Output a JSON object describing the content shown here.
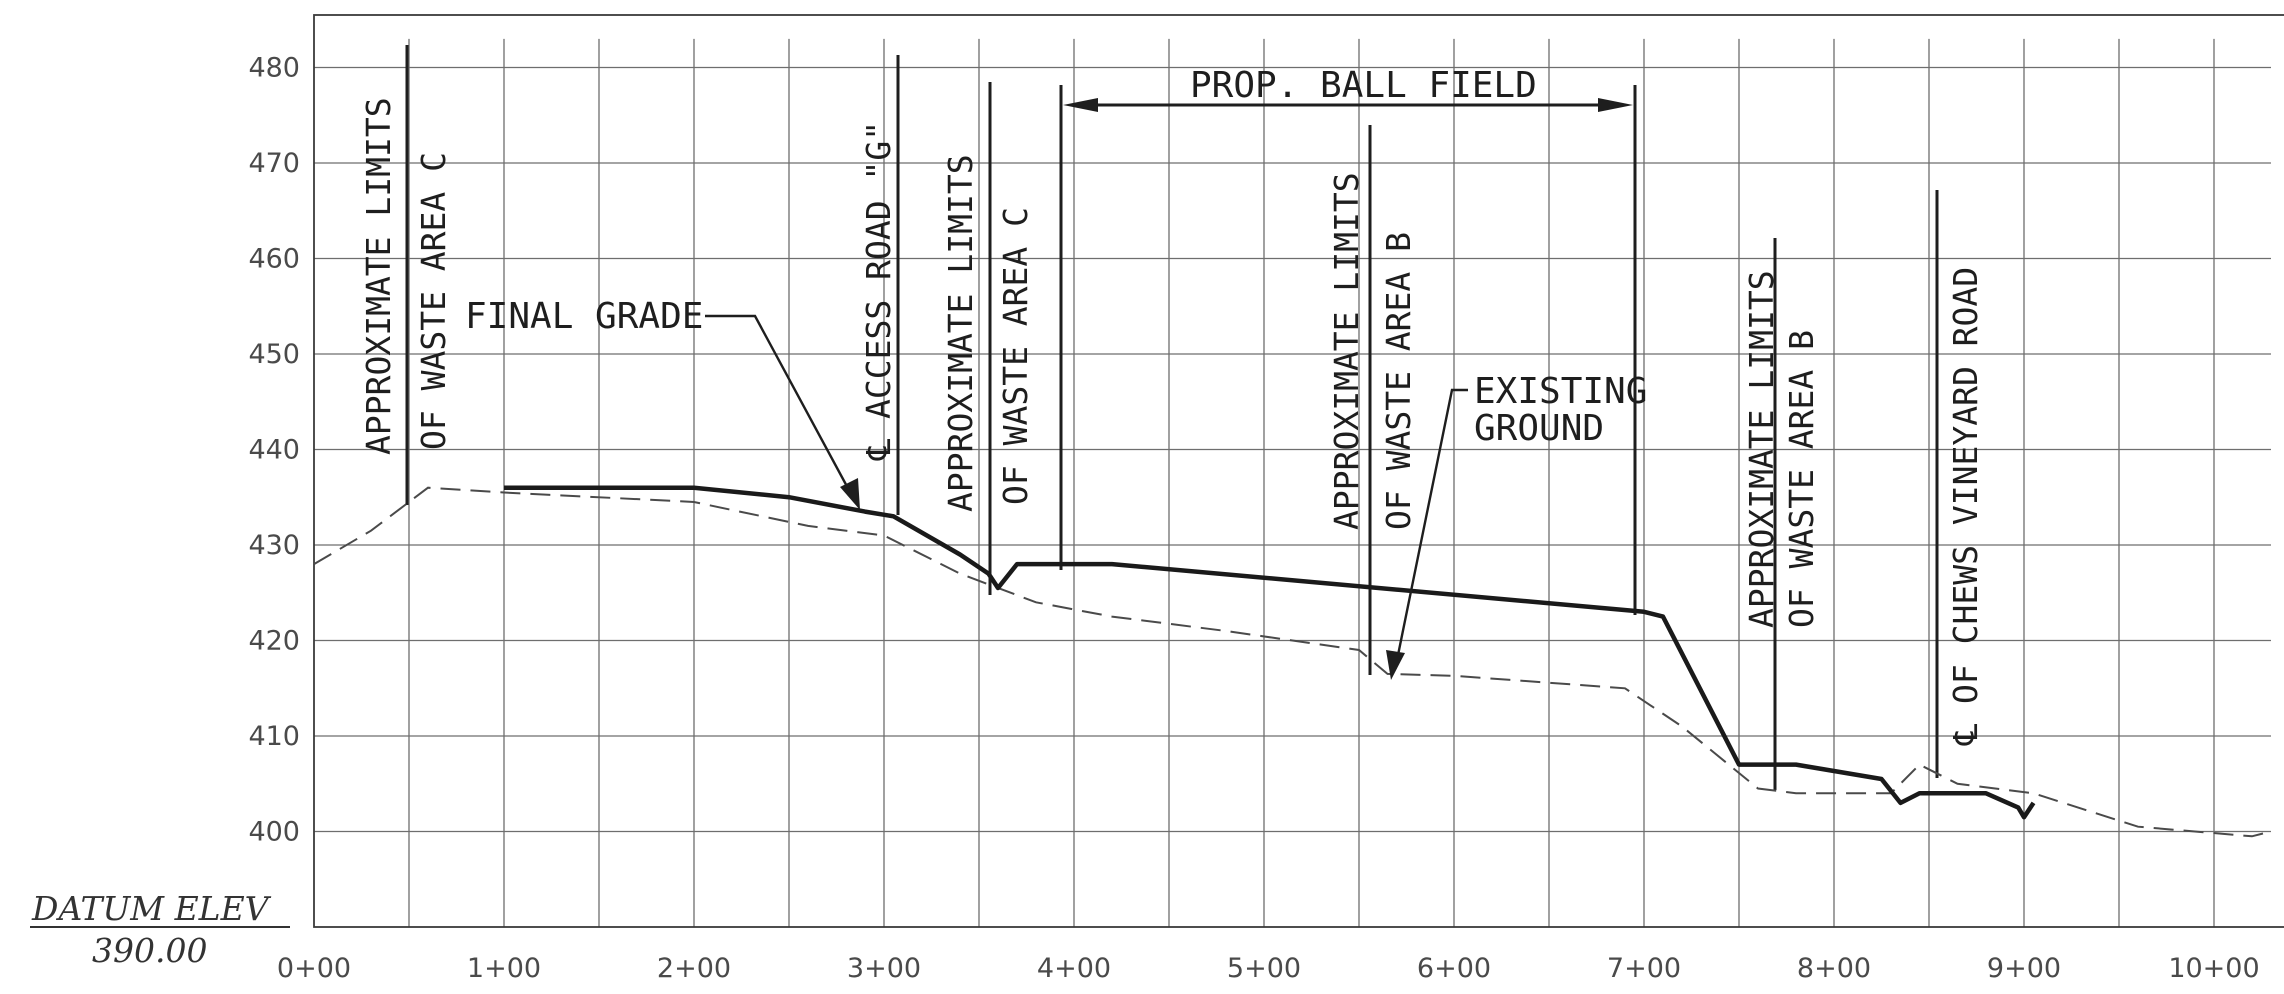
{
  "station_labels": [
    "0+00",
    "1+00",
    "2+00",
    "3+00",
    "4+00",
    "5+00",
    "6+00",
    "7+00",
    "8+00",
    "9+00",
    "10+00"
  ],
  "elevation_labels": [
    "400",
    "410",
    "420",
    "430",
    "440",
    "450",
    "460",
    "470",
    "480"
  ],
  "datum": {
    "line1": "DATUM ELEV",
    "line2": "390.00"
  },
  "annotations": {
    "prop_ball_field": "PROP. BALL FIELD",
    "final_grade": "FINAL GRADE",
    "existing_ground_line1": "EXISTING",
    "existing_ground_line2": "GROUND",
    "limits_c_left_line1": "APPROXIMATE LIMITS",
    "limits_c_left_line2": "OF WASTE AREA C",
    "access_road": "℄ ACCESS ROAD \"G\"",
    "limits_c_right_line1": "APPROXIMATE LIMITS",
    "limits_c_right_line2": "OF WASTE AREA C",
    "limits_b_mid_line1": "APPROXIMATE LIMITS",
    "limits_b_mid_line2": "OF WASTE AREA B",
    "limits_b_right_line1": "APPROXIMATE LIMITS",
    "limits_b_right_line2": "OF WASTE AREA B",
    "chews_vineyard_road": "℄ OF CHEWS VINEYARD ROAD"
  },
  "chart_data": {
    "type": "line",
    "xlabel": "",
    "ylabel": "",
    "xlim": [
      0,
      10.3
    ],
    "ylim": [
      390,
      483
    ],
    "grid": true,
    "series": [
      {
        "name": "FINAL GRADE",
        "style": "solid-heavy",
        "color": "#1a1a1a",
        "points": [
          [
            1.0,
            436
          ],
          [
            2.0,
            436
          ],
          [
            2.5,
            435
          ],
          [
            2.9,
            433.5
          ],
          [
            3.05,
            433
          ],
          [
            3.4,
            429
          ],
          [
            3.55,
            427
          ],
          [
            3.6,
            425.5
          ],
          [
            3.7,
            428
          ],
          [
            4.2,
            428
          ],
          [
            7.0,
            423
          ],
          [
            7.1,
            422.5
          ],
          [
            7.5,
            407
          ],
          [
            7.8,
            407
          ],
          [
            8.25,
            405.5
          ],
          [
            8.35,
            403
          ],
          [
            8.45,
            404
          ],
          [
            8.8,
            404
          ],
          [
            8.97,
            402.5
          ],
          [
            9.0,
            401.5
          ],
          [
            9.05,
            403
          ]
        ]
      },
      {
        "name": "EXISTING GROUND",
        "style": "dashed",
        "color": "#4a4a4a",
        "points": [
          [
            0.0,
            428
          ],
          [
            0.3,
            431.5
          ],
          [
            0.6,
            436
          ],
          [
            1.0,
            435.5
          ],
          [
            2.0,
            434.5
          ],
          [
            2.6,
            432
          ],
          [
            3.0,
            431
          ],
          [
            3.4,
            427
          ],
          [
            3.8,
            424
          ],
          [
            4.2,
            422.5
          ],
          [
            4.8,
            421
          ],
          [
            5.5,
            419
          ],
          [
            5.65,
            416.5
          ],
          [
            6.0,
            416.3
          ],
          [
            6.9,
            415
          ],
          [
            7.2,
            411
          ],
          [
            7.6,
            404.5
          ],
          [
            7.8,
            404
          ],
          [
            8.3,
            404
          ],
          [
            8.45,
            407
          ],
          [
            8.65,
            405
          ],
          [
            9.05,
            404
          ],
          [
            9.6,
            400.5
          ],
          [
            10.2,
            399.5
          ],
          [
            10.3,
            400
          ]
        ]
      }
    ]
  }
}
